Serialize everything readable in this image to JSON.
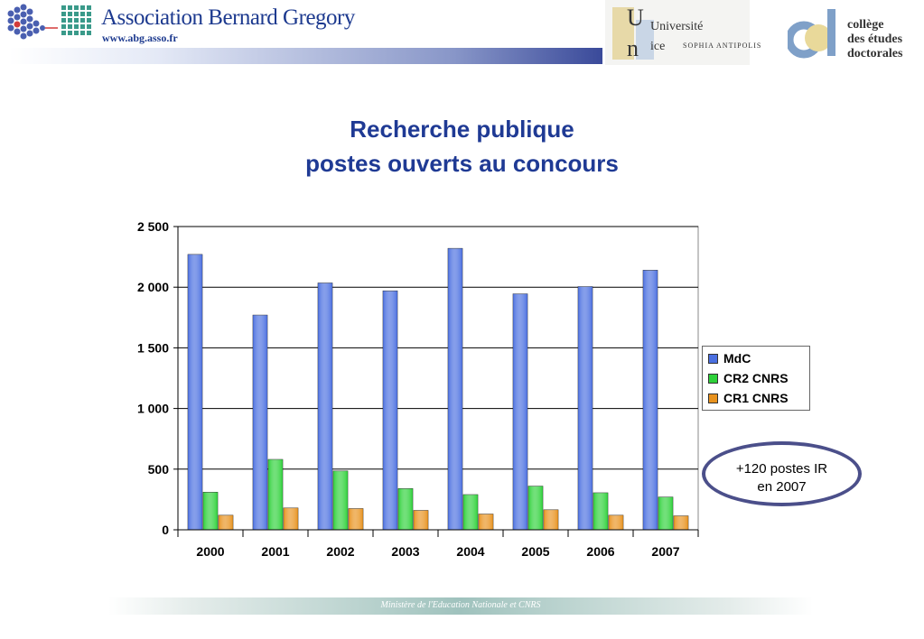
{
  "header": {
    "abg_name": "Association Bernard Gregory",
    "abg_url": "www.abg.asso.fr",
    "unice_line1": "Université",
    "unice_line2": "ice",
    "unice_sub": "SOPHIA ANTIPOLIS",
    "ced_line1": "collège",
    "ced_line2": "des études",
    "ced_line3": "doctorales",
    "colors": {
      "brand_blue": "#1d3a8f"
    }
  },
  "title": {
    "line1": "Recherche publique",
    "line2": "postes ouverts au concours"
  },
  "annotation": {
    "line1": "+120 postes IR",
    "line2": "en 2007"
  },
  "footer": {
    "text": "Ministère de l'Education Nationale et CNRS"
  },
  "chart_data": {
    "type": "bar",
    "categories": [
      "2000",
      "2001",
      "2002",
      "2003",
      "2004",
      "2005",
      "2006",
      "2007"
    ],
    "series": [
      {
        "name": "MdC",
        "color": "#4a6fe0",
        "values": [
          2270,
          1770,
          2035,
          1970,
          2320,
          1945,
          2005,
          2140
        ]
      },
      {
        "name": "CR2 CNRS",
        "color": "#2ed13a",
        "values": [
          310,
          580,
          485,
          340,
          290,
          360,
          305,
          270
        ]
      },
      {
        "name": "CR1 CNRS",
        "color": "#e8921e",
        "values": [
          120,
          180,
          175,
          160,
          130,
          165,
          120,
          115
        ]
      }
    ],
    "ylim": [
      0,
      2500
    ],
    "yticks": [
      "0",
      "500",
      "1 000",
      "1 500",
      "2 000",
      "2 500"
    ],
    "grid": true,
    "legend": "right"
  }
}
